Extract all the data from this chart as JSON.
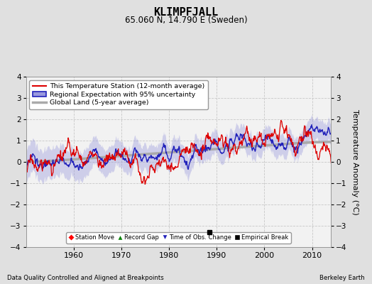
{
  "title": "KLIMPFJALL",
  "subtitle": "65.060 N, 14.790 E (Sweden)",
  "xlabel_bottom": "Data Quality Controlled and Aligned at Breakpoints",
  "xlabel_right": "Berkeley Earth",
  "ylabel": "Temperature Anomaly (°C)",
  "ylim": [
    -4,
    4
  ],
  "xlim": [
    1950,
    2014
  ],
  "yticks": [
    -4,
    -3,
    -2,
    -1,
    0,
    1,
    2,
    3,
    4
  ],
  "xticks": [
    1960,
    1970,
    1980,
    1990,
    2000,
    2010
  ],
  "bg_color": "#e0e0e0",
  "plot_bg_color": "#f2f2f2",
  "grid_color": "#c8c8c8",
  "legend_entries": [
    "This Temperature Station (12-month average)",
    "Regional Expectation with 95% uncertainty",
    "Global Land (5-year average)"
  ],
  "station_color": "#dd0000",
  "regional_color": "#2222bb",
  "regional_fill_color": "#9999dd",
  "global_color": "#aaaaaa",
  "marker_empirical_break_x": 1988.5,
  "marker_empirical_break_y": -3.3
}
